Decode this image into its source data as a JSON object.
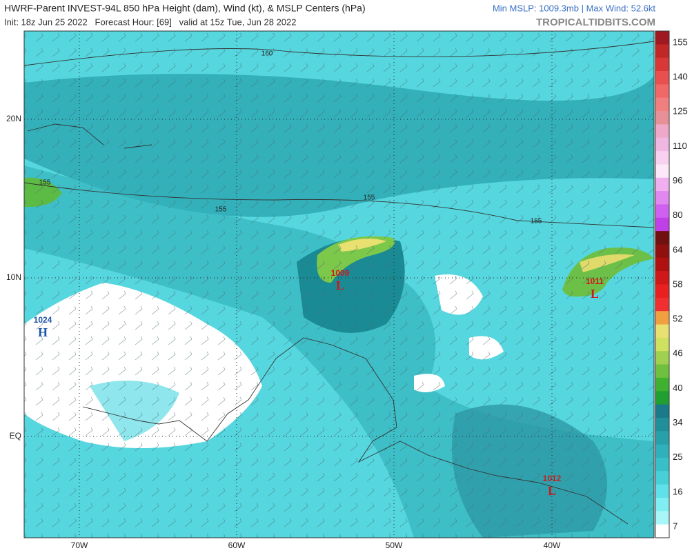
{
  "header": {
    "title": "HWRF-Parent INVEST-94L 850 hPa Height (dam), Wind (kt), & MSLP Centers (hPa)",
    "stats": "Min MSLP: 1009.3mb | Max Wind: 52.6kt",
    "init": "Init: 18z Jun 25 2022   Forecast Hour: [69]   valid at 15z Tue, Jun 28 2022",
    "credit": "TROPICALTIDBITS.COM"
  },
  "map": {
    "lat_labels": [
      "20N",
      "10N",
      "EQ"
    ],
    "lon_labels": [
      "70W",
      "60W",
      "50W",
      "40W"
    ],
    "contour_labels": [
      "160",
      "155",
      "155",
      "155",
      "155"
    ],
    "centers": [
      {
        "value": "1009",
        "symbol": "L"
      },
      {
        "value": "1011",
        "symbol": "L"
      },
      {
        "value": "1012",
        "symbol": "L"
      },
      {
        "value": "1024",
        "symbol": "H"
      }
    ]
  },
  "colorbar": {
    "labels": [
      "155",
      "140",
      "125",
      "110",
      "96",
      "80",
      "64",
      "58",
      "52",
      "46",
      "40",
      "34",
      "25",
      "16",
      "7"
    ]
  }
}
